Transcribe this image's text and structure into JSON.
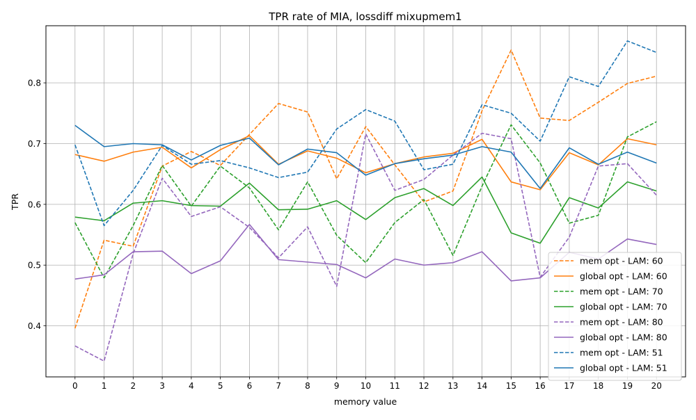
{
  "chart_data": {
    "type": "line",
    "title": "TPR rate of MIA, lossdiff mixupmem1",
    "xlabel": "memory value",
    "ylabel": "TPR",
    "x": [
      0,
      1,
      2,
      3,
      4,
      5,
      6,
      7,
      8,
      9,
      10,
      11,
      12,
      13,
      14,
      15,
      16,
      17,
      18,
      19,
      20
    ],
    "x_ticks": [
      "0",
      "1",
      "2",
      "3",
      "4",
      "5",
      "6",
      "7",
      "8",
      "9",
      "10",
      "11",
      "12",
      "13",
      "14",
      "15",
      "16",
      "17",
      "18",
      "19",
      "20"
    ],
    "xlim": [
      -1.0,
      21.0
    ],
    "y_ticks": [
      "0.4",
      "0.5",
      "0.6",
      "0.7",
      "0.8"
    ],
    "y_tick_values": [
      0.4,
      0.5,
      0.6,
      0.7,
      0.8
    ],
    "ylim": [
      0.316,
      0.894
    ],
    "grid": true,
    "legend_position": "lower right",
    "series": [
      {
        "name": "mem opt - LAM: 60",
        "color": "#ff7f0e",
        "dash": "dashed",
        "values": [
          0.396,
          0.541,
          0.531,
          0.663,
          0.687,
          0.664,
          0.715,
          0.766,
          0.752,
          0.642,
          0.728,
          0.665,
          0.604,
          0.622,
          0.754,
          0.854,
          0.742,
          0.738,
          0.768,
          0.799,
          0.811
        ]
      },
      {
        "name": "global opt - LAM: 60",
        "color": "#ff7f0e",
        "dash": "solid",
        "values": [
          0.682,
          0.671,
          0.686,
          0.694,
          0.66,
          0.69,
          0.713,
          0.666,
          0.688,
          0.676,
          0.652,
          0.667,
          0.678,
          0.684,
          0.707,
          0.637,
          0.624,
          0.685,
          0.665,
          0.708,
          0.698
        ]
      },
      {
        "name": "mem opt - LAM: 70",
        "color": "#2ca02c",
        "dash": "dashed",
        "values": [
          0.57,
          0.479,
          0.565,
          0.664,
          0.597,
          0.663,
          0.627,
          0.558,
          0.637,
          0.549,
          0.504,
          0.57,
          0.608,
          0.516,
          0.63,
          0.731,
          0.668,
          0.569,
          0.582,
          0.711,
          0.736
        ]
      },
      {
        "name": "global opt - LAM: 70",
        "color": "#2ca02c",
        "dash": "solid",
        "values": [
          0.579,
          0.573,
          0.602,
          0.606,
          0.598,
          0.597,
          0.635,
          0.591,
          0.592,
          0.606,
          0.575,
          0.611,
          0.626,
          0.598,
          0.645,
          0.553,
          0.536,
          0.611,
          0.594,
          0.637,
          0.622
        ]
      },
      {
        "name": "mem opt - LAM: 80",
        "color": "#9467bd",
        "dash": "dashed",
        "values": [
          0.367,
          0.342,
          0.519,
          0.643,
          0.58,
          0.596,
          0.562,
          0.512,
          0.563,
          0.465,
          0.716,
          0.623,
          0.641,
          0.681,
          0.717,
          0.708,
          0.48,
          0.546,
          0.663,
          0.667,
          0.615
        ]
      },
      {
        "name": "global opt - LAM: 80",
        "color": "#9467bd",
        "dash": "solid",
        "values": [
          0.477,
          0.484,
          0.522,
          0.523,
          0.486,
          0.507,
          0.567,
          0.509,
          0.505,
          0.501,
          0.479,
          0.51,
          0.5,
          0.504,
          0.522,
          0.474,
          0.479,
          0.521,
          0.51,
          0.543,
          0.534
        ]
      },
      {
        "name": "mem opt - LAM: 51",
        "color": "#1f77b4",
        "dash": "dashed",
        "values": [
          0.698,
          0.565,
          0.623,
          0.697,
          0.666,
          0.672,
          0.66,
          0.644,
          0.653,
          0.724,
          0.756,
          0.737,
          0.657,
          0.666,
          0.764,
          0.75,
          0.704,
          0.81,
          0.794,
          0.869,
          0.85
        ]
      },
      {
        "name": "global opt - LAM: 51",
        "color": "#1f77b4",
        "dash": "solid",
        "values": [
          0.73,
          0.695,
          0.7,
          0.698,
          0.673,
          0.697,
          0.709,
          0.665,
          0.691,
          0.685,
          0.648,
          0.667,
          0.675,
          0.681,
          0.695,
          0.686,
          0.626,
          0.693,
          0.666,
          0.686,
          0.668
        ]
      }
    ]
  }
}
